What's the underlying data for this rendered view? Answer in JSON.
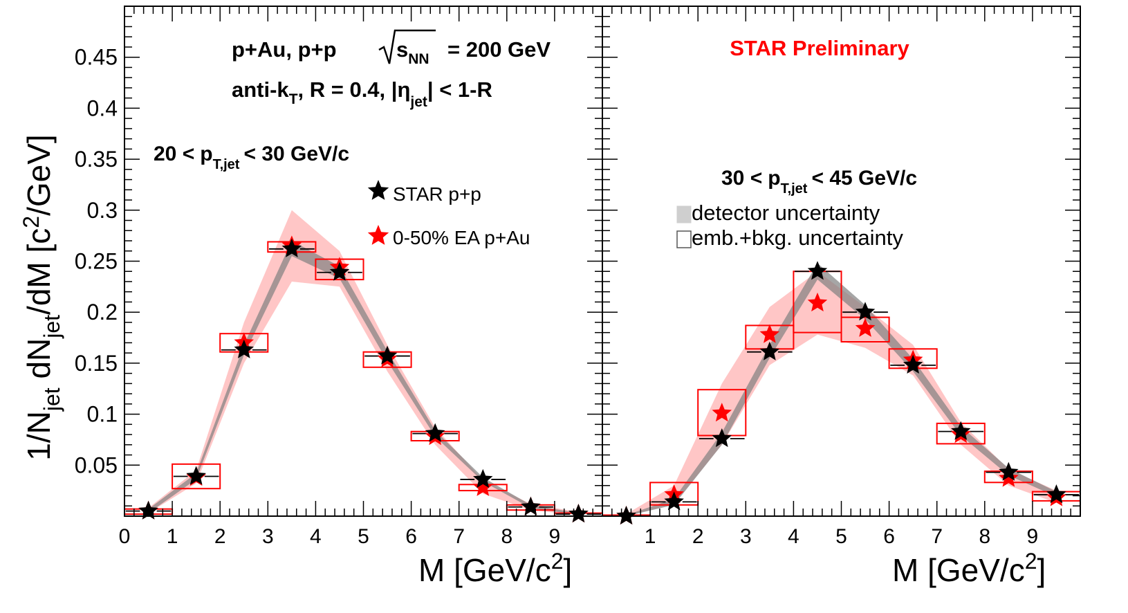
{
  "chart_data": [
    {
      "type": "scatter",
      "panel": "left",
      "header_line1": "p+Au, p+p",
      "header_energy": "= 200 GeV",
      "header_line2_prefix": "anti-k",
      "header_line2_suffix": ", R = 0.4, |",
      "header_line2_end": "| < 1-R",
      "pt_range": {
        "low": "20 <",
        "var": "p",
        "sub": "T,jet",
        "high": "< 30 GeV/c"
      },
      "ylabel": "1/N_jet dN_jet/dM [c^2/GeV]",
      "xlabel": "M [GeV/c^2]",
      "xlim": [
        0,
        10
      ],
      "ylim": [
        0,
        0.5
      ],
      "x_ticks": [
        "0",
        "1",
        "2",
        "3",
        "4",
        "5",
        "6",
        "7",
        "8",
        "9"
      ],
      "y_ticks": [
        "0.05",
        "0.1",
        "0.15",
        "0.2",
        "0.25",
        "0.3",
        "0.35",
        "0.4",
        "0.45"
      ],
      "x": [
        0.5,
        1.5,
        2.5,
        3.5,
        4.5,
        5.5,
        6.5,
        7.5,
        8.5,
        9.5
      ],
      "series": [
        {
          "name": "STAR p+p",
          "color": "#000000",
          "marker": "star",
          "values": [
            0.005,
            0.039,
            0.163,
            0.262,
            0.239,
            0.157,
            0.081,
            0.036,
            0.009,
            0.002
          ],
          "band": {
            "label": "detector uncertainty",
            "color": "#808080",
            "low": [
              0.003,
              0.036,
              0.158,
              0.255,
              0.233,
              0.152,
              0.078,
              0.034,
              0.008,
              0.001
            ],
            "high": [
              0.007,
              0.042,
              0.168,
              0.27,
              0.245,
              0.162,
              0.084,
              0.038,
              0.011,
              0.003
            ]
          }
        },
        {
          "name": "0-50% EA p+Au",
          "color": "#ff0000",
          "marker": "star",
          "values": [
            0.005,
            0.038,
            0.17,
            0.265,
            0.244,
            0.154,
            0.078,
            0.028,
            0.009,
            0.002
          ],
          "band": {
            "color": "#ffb3b3",
            "low": [
              0.003,
              0.032,
              0.15,
              0.23,
              0.225,
              0.142,
              0.07,
              0.022,
              0.006,
              0.001
            ],
            "high": [
              0.008,
              0.045,
              0.19,
              0.3,
              0.26,
              0.168,
              0.087,
              0.035,
              0.012,
              0.004
            ]
          },
          "boxes": {
            "label": "emb.+bkg. uncertainty",
            "low": [
              0.002,
              0.027,
              0.161,
              0.259,
              0.232,
              0.146,
              0.074,
              0.025,
              0.006,
              0.0
            ],
            "high": [
              0.007,
              0.051,
              0.179,
              0.269,
              0.252,
              0.161,
              0.083,
              0.031,
              0.011,
              0.003
            ]
          }
        }
      ],
      "black_dashes": [
        0.005,
        0.039,
        0.163,
        0.262,
        0.239,
        0.157,
        0.081,
        0.036,
        0.009,
        0.002
      ]
    },
    {
      "type": "scatter",
      "panel": "right",
      "annotation": "STAR Preliminary",
      "annotation_color": "#ff0000",
      "pt_range": {
        "low": "30 <",
        "var": "p",
        "sub": "T,jet",
        "high": "< 45 GeV/c"
      },
      "legend": [
        "detector uncertainty",
        "emb.+bkg. uncertainty"
      ],
      "xlabel": "M [GeV/c^2]",
      "xlim": [
        0,
        10
      ],
      "ylim": [
        0,
        0.5
      ],
      "x_ticks": [
        "1",
        "2",
        "3",
        "4",
        "5",
        "6",
        "7",
        "8",
        "9"
      ],
      "x": [
        0.5,
        1.5,
        2.5,
        3.5,
        4.5,
        5.5,
        6.5,
        7.5,
        8.5,
        9.5
      ],
      "series": [
        {
          "name": "STAR p+p",
          "color": "#000000",
          "marker": "star",
          "values": [
            0.0,
            0.014,
            0.076,
            0.161,
            0.24,
            0.2,
            0.148,
            0.083,
            0.043,
            0.021
          ],
          "band": {
            "color": "#808080",
            "low": [
              0.0,
              0.011,
              0.07,
              0.155,
              0.232,
              0.193,
              0.142,
              0.079,
              0.04,
              0.019
            ],
            "high": [
              0.001,
              0.017,
              0.082,
              0.168,
              0.248,
              0.207,
              0.154,
              0.088,
              0.047,
              0.024
            ]
          }
        },
        {
          "name": "0-50% EA p+Au",
          "color": "#ff0000",
          "marker": "star",
          "values": [
            0.0,
            0.021,
            0.101,
            0.178,
            0.209,
            0.184,
            0.153,
            0.08,
            0.037,
            0.018
          ],
          "band": {
            "color": "#ffb3b3",
            "low": [
              0.0,
              0.012,
              0.07,
              0.148,
              0.178,
              0.165,
              0.138,
              0.07,
              0.03,
              0.013
            ],
            "high": [
              0.002,
              0.03,
              0.13,
              0.205,
              0.24,
              0.205,
              0.168,
              0.092,
              0.046,
              0.025
            ]
          },
          "boxes": {
            "low": [
              0.0,
              0.011,
              0.079,
              0.164,
              0.18,
              0.171,
              0.145,
              0.071,
              0.033,
              0.015
            ],
            "high": [
              0.001,
              0.033,
              0.124,
              0.187,
              0.24,
              0.195,
              0.164,
              0.091,
              0.044,
              0.024
            ]
          }
        }
      ],
      "black_dashes": [
        0.0,
        0.014,
        0.076,
        0.161,
        0.24,
        0.2,
        0.148,
        0.083,
        0.043,
        0.021
      ]
    }
  ],
  "legend_left": [
    {
      "label": "STAR p+p",
      "color": "#000000"
    },
    {
      "label": "0-50% EA p+Au",
      "color": "#ff0000"
    }
  ],
  "text": {
    "header_sqrt_s": "s",
    "header_sqrt_sub": "NN",
    "anti_kt_sub": "T",
    "eta_symbol": "η",
    "eta_sub": "jet",
    "y_axis": {
      "a": "1/N",
      "a_sub": "jet",
      "b": " dN",
      "b_sub": "jet",
      "c": "/dM [c",
      "c_sup": "2",
      "d": "/GeV]"
    },
    "x_axis": {
      "a": "M [GeV/c",
      "sup": "2",
      "b": "]"
    }
  }
}
